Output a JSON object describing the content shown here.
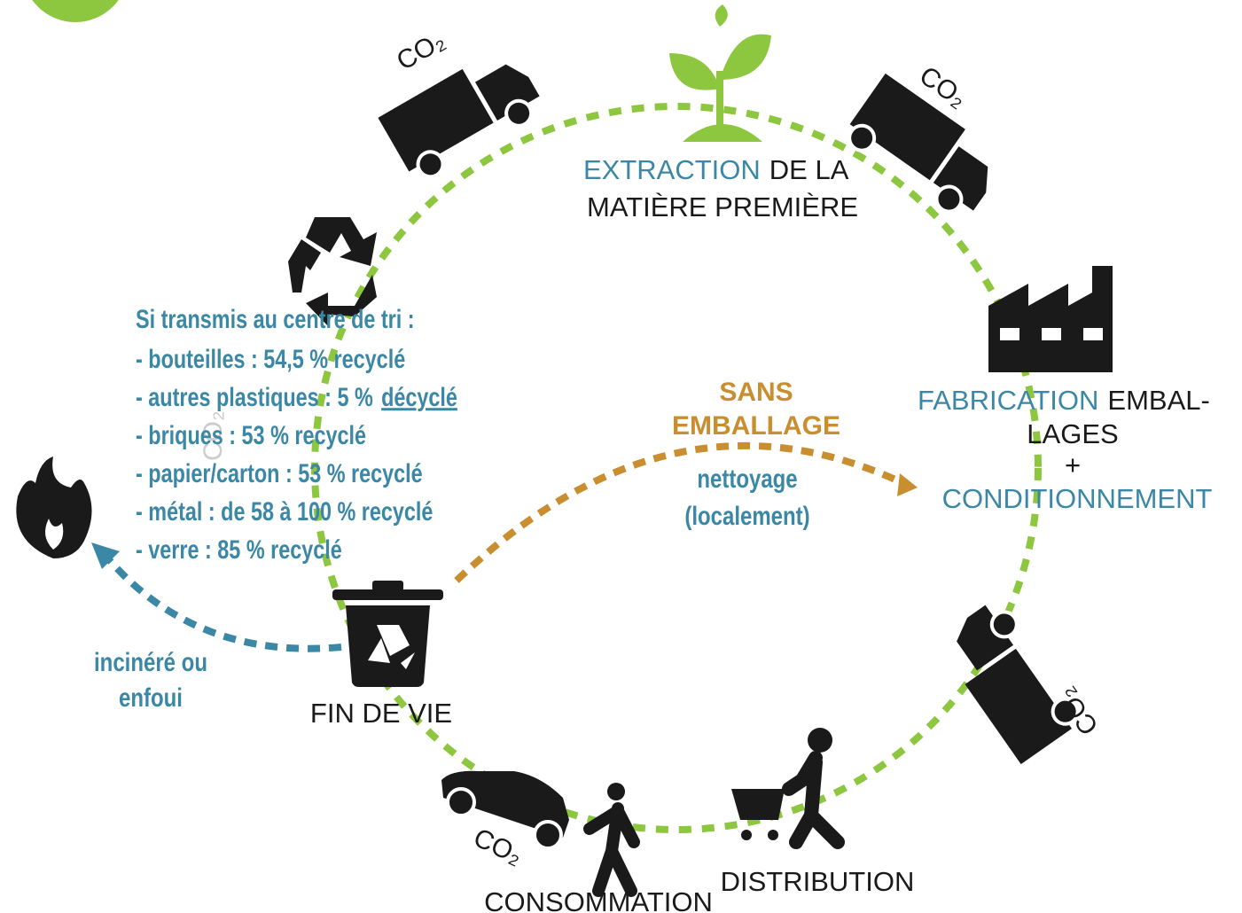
{
  "co2_labels": [
    "CO₂",
    "CO₂",
    "CO₂",
    "CO₂",
    "CO₂"
  ],
  "extraction": {
    "highlight": "EXTRACTION",
    "rest": "DE LA",
    "line2": "MATIÈRE PREMIÈRE"
  },
  "fabrication": {
    "highlight": "FABRICATION",
    "rest": "EMBAL-",
    "line2": "LAGES",
    "line3": "+",
    "line4": "CONDITIONNEMENT"
  },
  "distribution": "DISTRIBUTION",
  "consommation": "CONSOMMATION",
  "fin_de_vie": "FIN DE VIE",
  "sans_emballage": {
    "title": [
      "SANS",
      "EMBALLAGE"
    ],
    "note": [
      "nettoyage",
      "(localement)"
    ]
  },
  "recycling": {
    "title": "Si transmis au centre de tri :",
    "lines": [
      "- bouteilles : 54,5 % recyclé",
      "- autres plastiques : 5 %",
      "- briques : 53 % recyclé",
      "- papier/carton : 53 % recyclé",
      "- métal : de 58 à 100 % recyclé",
      "- verre : 85 % recyclé"
    ],
    "underlined": "décyclé"
  },
  "incineration": [
    "incinéré ou",
    "enfoui"
  ]
}
